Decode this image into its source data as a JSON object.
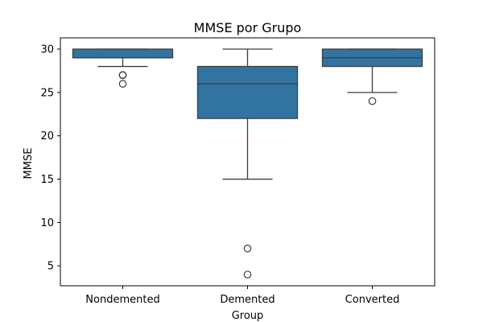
{
  "chart_data": {
    "type": "box",
    "title": "MMSE por Grupo",
    "xlabel": "Group",
    "ylabel": "MMSE",
    "ylim": [
      2.7,
      31.3
    ],
    "yticks": [
      5,
      10,
      15,
      20,
      25,
      30
    ],
    "grid": false,
    "box_color": "#3274a1",
    "line_color": "#3d3d3d",
    "groups": [
      {
        "category": "Nondemented",
        "whisker_low": 28,
        "q1": 29,
        "median": 29,
        "q3": 30,
        "whisker_high": 30,
        "outliers": [
          27,
          27,
          27,
          26
        ]
      },
      {
        "category": "Demented",
        "whisker_low": 15,
        "q1": 22,
        "median": 26,
        "q3": 28,
        "whisker_high": 30,
        "outliers": [
          7,
          4
        ]
      },
      {
        "category": "Converted",
        "whisker_low": 25,
        "q1": 28,
        "median": 29,
        "q3": 30,
        "whisker_high": 30,
        "outliers": [
          24
        ]
      }
    ]
  }
}
